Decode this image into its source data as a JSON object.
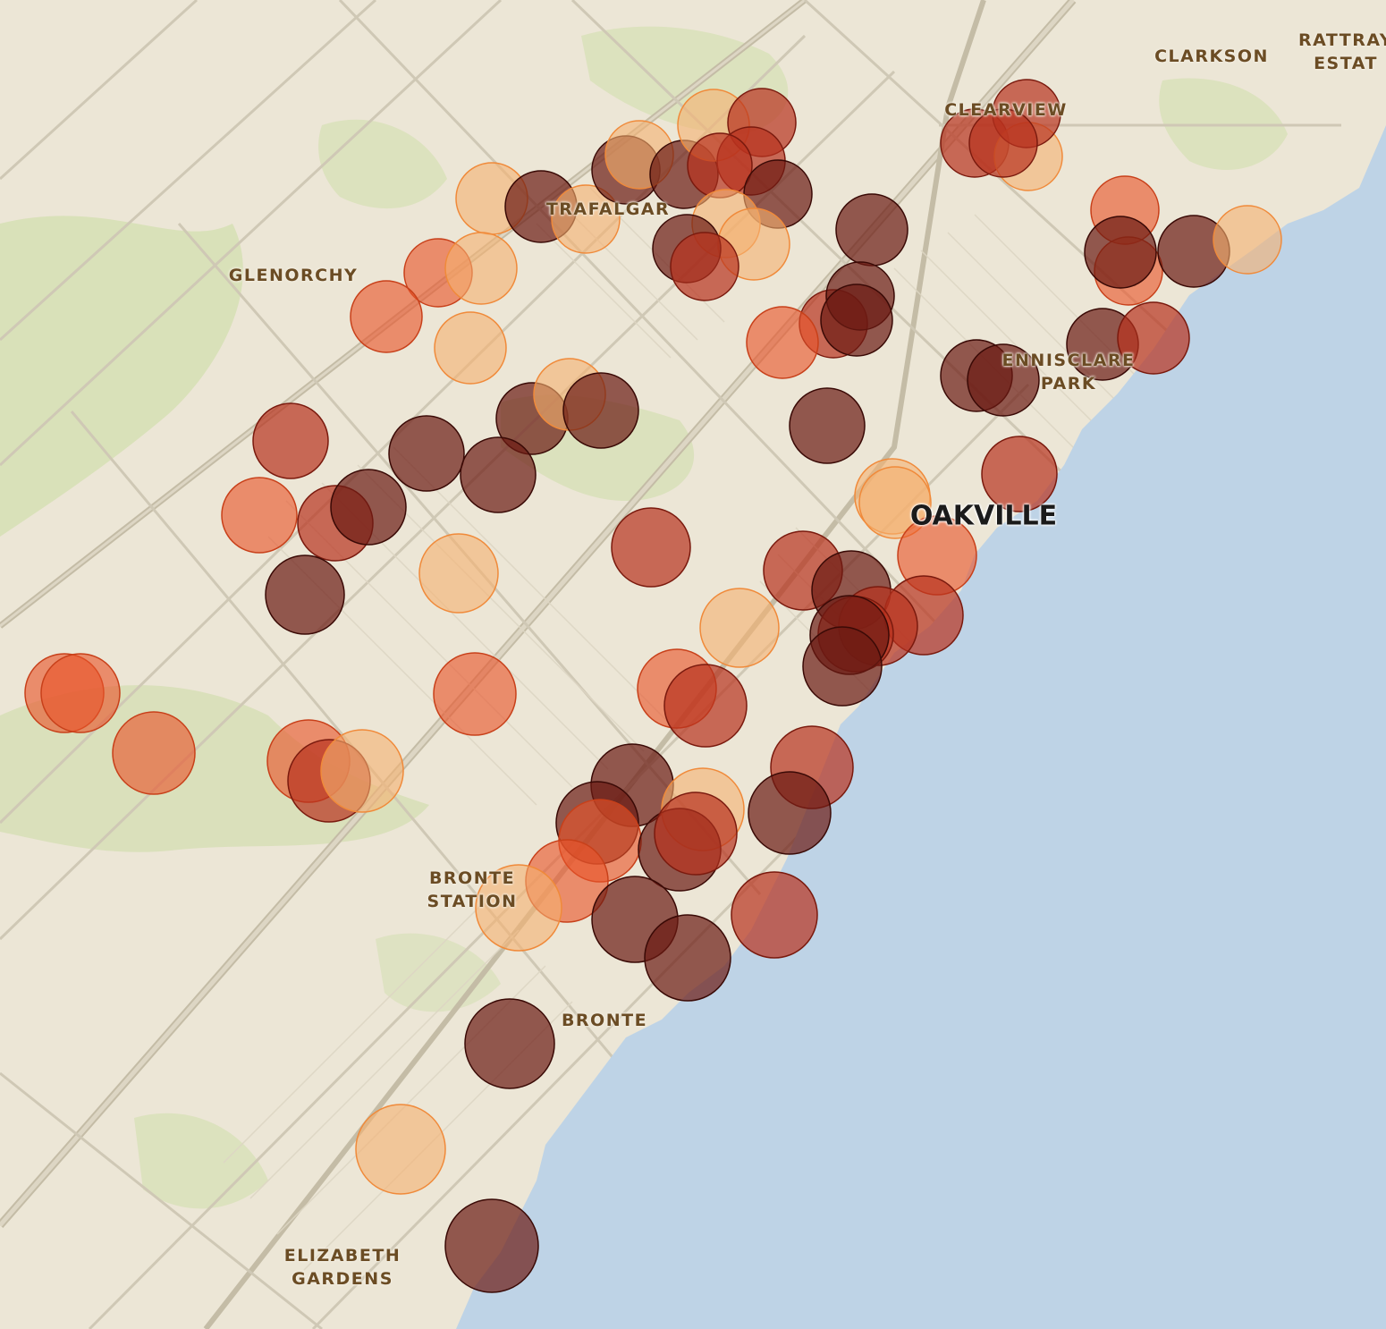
{
  "map": {
    "labels": {
      "clarkson": "CLARKSON",
      "rattray": "RATTRAY\nESTAT",
      "clearview": "CLEARVIEW",
      "trafalgar": "TRAFALGAR",
      "glenorchy": "GLENORCHY",
      "ennisclare": "ENNISCLARE\nPARK",
      "oakville": "OAKVILLE",
      "bronte_station": "BRONTE\nSTATION",
      "bronte": "BRONTE",
      "elizabeth": "ELIZABETH\nGARDENS"
    },
    "colors": {
      "land": "#ece6d6",
      "water": "#bed3e6",
      "park": "#d6dfb4",
      "road": "#c9c1ad",
      "dark_marker": "#6b1a12",
      "red_marker": "#b8321e",
      "orange_marker": "#e8542a",
      "light_marker": "#f5b070"
    },
    "marker_classes": [
      "dark",
      "red",
      "orange",
      "light"
    ]
  }
}
